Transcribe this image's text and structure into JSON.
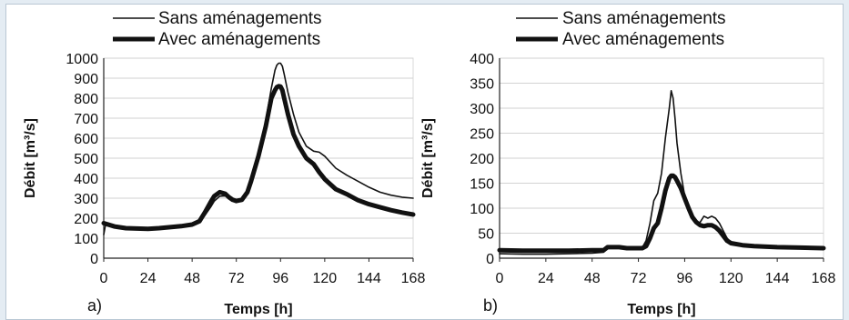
{
  "chart_data": [
    {
      "type": "line",
      "panel_label": "a)",
      "xlabel": "Temps [h]",
      "ylabel": "Débit [m³/s]",
      "xlim": [
        0,
        168
      ],
      "ylim": [
        0,
        1000
      ],
      "xticks": [
        0,
        24,
        48,
        72,
        96,
        120,
        144,
        168
      ],
      "yticks": [
        0,
        100,
        200,
        300,
        400,
        500,
        600,
        700,
        800,
        900,
        1000
      ],
      "grid": "horizontal",
      "legend_position": "top",
      "series": [
        {
          "name": "Sans aménagements",
          "style": "thin",
          "x": [
            0,
            1,
            6,
            12,
            18,
            24,
            30,
            36,
            42,
            48,
            52,
            55,
            58,
            60,
            63,
            66,
            68,
            70,
            72,
            75,
            78,
            80,
            84,
            88,
            91,
            93,
            94,
            95,
            96,
            97,
            98,
            100,
            103,
            106,
            110,
            114,
            117,
            120,
            126,
            132,
            138,
            144,
            150,
            156,
            162,
            168
          ],
          "values": [
            118,
            168,
            160,
            155,
            152,
            150,
            152,
            157,
            162,
            168,
            182,
            215,
            255,
            285,
            310,
            312,
            305,
            292,
            285,
            292,
            330,
            390,
            520,
            690,
            850,
            940,
            965,
            975,
            975,
            960,
            920,
            830,
            720,
            630,
            560,
            535,
            530,
            510,
            450,
            415,
            385,
            355,
            330,
            315,
            305,
            300
          ]
        },
        {
          "name": "Avec aménagements",
          "style": "thick",
          "x": [
            0,
            6,
            12,
            18,
            24,
            30,
            36,
            42,
            48,
            52,
            55,
            58,
            60,
            63,
            66,
            68,
            70,
            72,
            75,
            78,
            80,
            84,
            88,
            91,
            93,
            94,
            95,
            96,
            97,
            98,
            100,
            103,
            106,
            110,
            114,
            117,
            120,
            126,
            132,
            138,
            144,
            150,
            156,
            162,
            168
          ],
          "values": [
            175,
            158,
            150,
            148,
            147,
            150,
            155,
            160,
            168,
            185,
            230,
            280,
            310,
            330,
            322,
            305,
            292,
            286,
            292,
            330,
            385,
            510,
            660,
            800,
            840,
            855,
            860,
            858,
            840,
            800,
            720,
            620,
            560,
            500,
            470,
            430,
            395,
            345,
            320,
            290,
            270,
            255,
            240,
            228,
            218
          ]
        }
      ]
    },
    {
      "type": "line",
      "panel_label": "b)",
      "xlabel": "Temps [h]",
      "ylabel": "Débit [m³/s]",
      "xlim": [
        0,
        168
      ],
      "ylim": [
        0,
        400
      ],
      "xticks": [
        0,
        24,
        48,
        72,
        96,
        120,
        144,
        168
      ],
      "yticks": [
        0,
        50,
        100,
        150,
        200,
        250,
        300,
        350,
        400
      ],
      "grid": "horizontal",
      "legend_position": "top",
      "series": [
        {
          "name": "Sans aménagements",
          "style": "thin",
          "x": [
            0,
            12,
            24,
            36,
            48,
            54,
            56,
            58,
            62,
            66,
            70,
            74,
            76,
            78,
            80,
            82,
            84,
            86,
            88,
            89,
            90,
            91,
            92,
            94,
            96,
            98,
            100,
            102,
            104,
            106,
            108,
            110,
            112,
            114,
            116,
            118,
            120,
            126,
            132,
            144,
            156,
            168
          ],
          "values": [
            9,
            8,
            8,
            9,
            10,
            12,
            20,
            22,
            22,
            20,
            20,
            21,
            35,
            70,
            115,
            130,
            170,
            240,
            300,
            335,
            320,
            280,
            230,
            170,
            125,
            100,
            80,
            70,
            72,
            84,
            80,
            84,
            80,
            70,
            55,
            40,
            32,
            27,
            25,
            23,
            22,
            20
          ]
        },
        {
          "name": "Avec aménagements",
          "style": "thick",
          "x": [
            0,
            12,
            24,
            36,
            48,
            54,
            56,
            58,
            62,
            66,
            70,
            74,
            76,
            78,
            80,
            82,
            84,
            86,
            88,
            89,
            90,
            91,
            92,
            94,
            96,
            98,
            100,
            102,
            104,
            106,
            108,
            110,
            112,
            114,
            116,
            118,
            120,
            126,
            132,
            144,
            156,
            168
          ],
          "values": [
            16,
            15,
            15,
            15,
            16,
            16,
            22,
            22,
            22,
            20,
            20,
            20,
            24,
            40,
            60,
            70,
            100,
            135,
            160,
            165,
            165,
            162,
            155,
            140,
            120,
            100,
            82,
            72,
            66,
            64,
            66,
            66,
            62,
            55,
            45,
            35,
            30,
            26,
            24,
            22,
            21,
            20
          ]
        }
      ]
    }
  ]
}
